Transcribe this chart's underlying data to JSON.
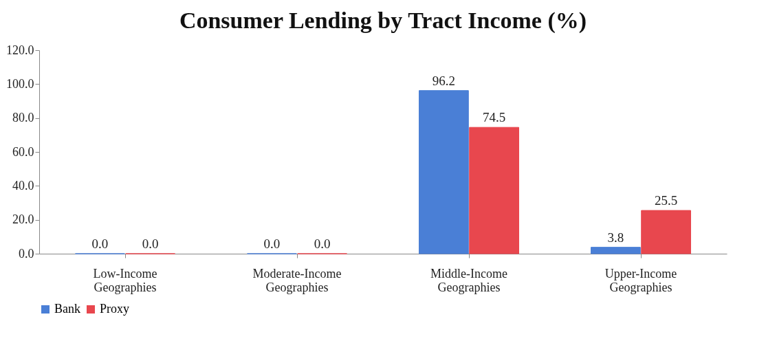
{
  "chart_data": {
    "type": "bar",
    "title": "Consumer Lending by Tract Income (%)",
    "categories": [
      "Low-Income Geographies",
      "Moderate-Income Geographies",
      "Middle-Income Geographies",
      "Upper-Income Geographies"
    ],
    "series": [
      {
        "name": "Bank",
        "color": "#4a7fd6",
        "values": [
          0,
          0,
          96.2,
          3.8
        ],
        "value_labels": [
          "0.0",
          "0.0",
          "96.2",
          "3.8"
        ]
      },
      {
        "name": "Proxy",
        "color": "#e8474e",
        "values": [
          0,
          0,
          74.5,
          25.5
        ],
        "value_labels": [
          "0.0",
          "0.0",
          "74.5",
          "25.5"
        ]
      }
    ],
    "ylim": [
      0,
      120
    ],
    "yticks": [
      {
        "value": 0,
        "label": "0.0"
      },
      {
        "value": 20,
        "label": "20.0"
      },
      {
        "value": 40,
        "label": "40.0"
      },
      {
        "value": 60,
        "label": "60.0"
      },
      {
        "value": 80,
        "label": "80.0"
      },
      {
        "value": 100,
        "label": "100.0"
      },
      {
        "value": 120,
        "label": "120.0"
      }
    ],
    "grid": false,
    "legend": "bottom"
  }
}
